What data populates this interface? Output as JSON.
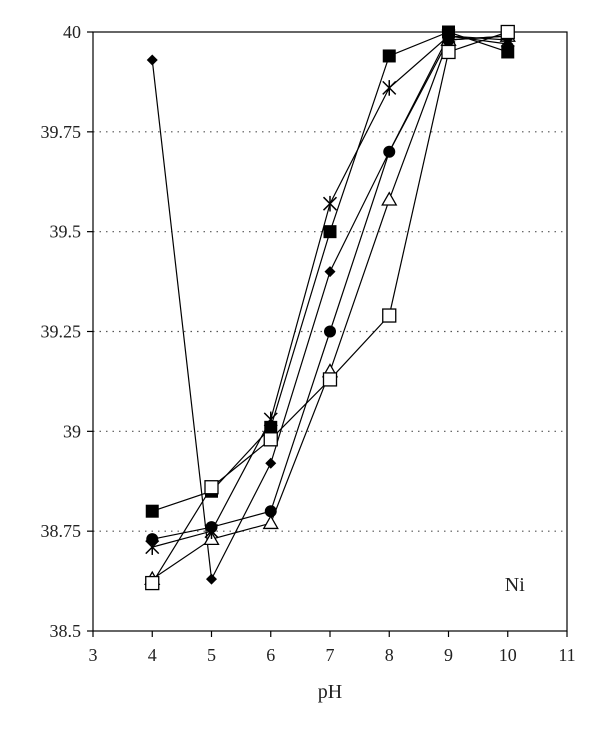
{
  "chart_data": {
    "type": "scatter",
    "title": "",
    "xlabel": "pH",
    "ylabel": "",
    "xlim": [
      3,
      11
    ],
    "ylim": [
      38.5,
      40
    ],
    "xticks": [
      3,
      4,
      5,
      6,
      7,
      8,
      9,
      10,
      11
    ],
    "yticks": [
      38.5,
      38.75,
      39,
      39.25,
      39.5,
      39.75,
      40
    ],
    "ytick_labels": [
      "38.5",
      "38.75",
      "39",
      "39.25",
      "39.5",
      "39.75",
      "40"
    ],
    "grid": "horizontal dotted",
    "annotation": "Ni",
    "series": [
      {
        "marker": "diamond-filled",
        "x": [
          4,
          5,
          6,
          7,
          8,
          9,
          10
        ],
        "y": [
          39.93,
          38.63,
          38.92,
          39.4,
          39.7,
          39.99,
          39.97
        ]
      },
      {
        "marker": "square-filled",
        "x": [
          4,
          5,
          6,
          7,
          8,
          9,
          10
        ],
        "y": [
          38.8,
          38.85,
          39.01,
          39.5,
          39.94,
          40.0,
          39.95
        ]
      },
      {
        "marker": "triangle-open",
        "x": [
          4,
          5,
          6,
          7,
          8,
          9,
          10
        ],
        "y": [
          38.63,
          38.73,
          38.77,
          39.15,
          39.58,
          39.98,
          39.99
        ]
      },
      {
        "marker": "star",
        "x": [
          4,
          5,
          6,
          7,
          8,
          9,
          10
        ],
        "y": [
          38.71,
          38.75,
          39.03,
          39.57,
          39.86,
          39.99,
          39.98
        ]
      },
      {
        "marker": "circle-filled",
        "x": [
          4,
          5,
          6,
          7,
          8,
          9,
          10
        ],
        "y": [
          38.73,
          38.76,
          38.8,
          39.25,
          39.7,
          39.98,
          39.99
        ]
      },
      {
        "marker": "square-open",
        "x": [
          4,
          5,
          6,
          7,
          8,
          9,
          10
        ],
        "y": [
          38.62,
          38.86,
          38.98,
          39.13,
          39.29,
          39.95,
          40.0
        ]
      }
    ],
    "colors": {
      "line": "#000000",
      "axis": "#000000",
      "grid": "#555555"
    }
  }
}
